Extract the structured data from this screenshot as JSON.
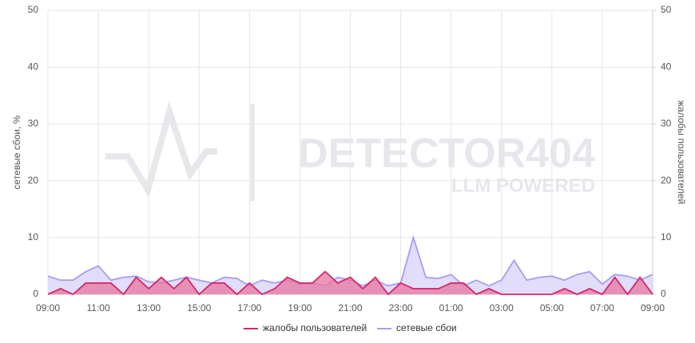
{
  "chart_data": {
    "type": "area",
    "watermark": {
      "title": "DETECTOR404",
      "subtitle": "LLM POWERED"
    },
    "y_label": "сетевые сбои, %",
    "y2_label": "жалобы пользователей",
    "categories": [
      "09:00",
      null,
      null,
      null,
      "11:00",
      null,
      null,
      null,
      "13:00",
      null,
      null,
      null,
      "15:00",
      null,
      null,
      null,
      "17:00",
      null,
      null,
      null,
      "19:00",
      null,
      null,
      null,
      "21:00",
      null,
      null,
      null,
      "23:00",
      null,
      null,
      null,
      "01:00",
      null,
      null,
      null,
      "03:00",
      null,
      null,
      null,
      "05:00",
      null,
      null,
      null,
      "07:00",
      null,
      null,
      null,
      "09:00"
    ],
    "ylim": [
      0,
      50
    ],
    "yticks": [
      0,
      10,
      20,
      30,
      40,
      50
    ],
    "y2lim": [
      0,
      50
    ],
    "y2ticks": [
      0,
      10,
      20,
      30,
      40,
      50
    ],
    "grid": true,
    "legend": "bottom",
    "series": [
      {
        "name": "жалобы пользователей",
        "color": "#d6256c",
        "fill": "#e8759f",
        "axis": "y2",
        "values": [
          0,
          1,
          0,
          2,
          2,
          2,
          0,
          3,
          1,
          3,
          1,
          3,
          0,
          2,
          2,
          0,
          2,
          0,
          1,
          3,
          2,
          2,
          4,
          2,
          3,
          1,
          3,
          0,
          2,
          1,
          1,
          1,
          2,
          2,
          0,
          1,
          0,
          0,
          0,
          0,
          0,
          1,
          0,
          1,
          0,
          3,
          0,
          3,
          0
        ]
      },
      {
        "name": "сетевые сбои",
        "color": "#a79cf0",
        "fill": "#d7d1f8",
        "values": [
          3.2,
          2.5,
          2.5,
          4,
          5,
          2.5,
          3,
          3.2,
          2.2,
          2,
          2.5,
          3,
          2.5,
          2,
          3,
          2.8,
          1.5,
          2.5,
          2,
          2.5,
          1.8,
          2,
          1.5,
          3,
          2.5,
          1.5,
          2.5,
          1.5,
          2,
          10,
          3,
          2.8,
          3.5,
          1.5,
          2.5,
          1.5,
          2.5,
          6,
          2.5,
          3,
          3.2,
          2.5,
          3.5,
          4,
          1.8,
          3.5,
          3.2,
          2.5,
          3.5
        ]
      }
    ]
  }
}
